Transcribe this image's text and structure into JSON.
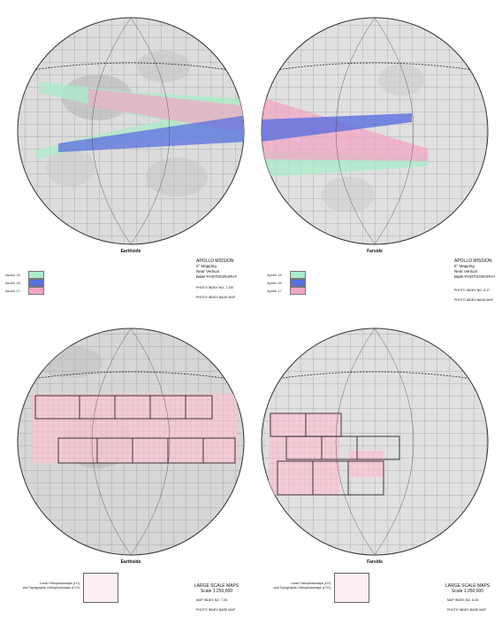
{
  "panels": [
    {
      "side": "Earthside",
      "legend": [
        {
          "label": "Apollo 15",
          "color": "#a8ecc8"
        },
        {
          "label": "Apollo 16",
          "color": "#5a6fe0"
        },
        {
          "label": "Apollo 17",
          "color": "#f3a6c4"
        }
      ],
      "title_lines": [
        "APOLLO MISSION",
        "5° Mapping",
        "Near Vertical",
        "B&W PHOTOGRAPHY"
      ],
      "photo_index_no": "PHOTO INDEX NO. 7.230",
      "photo_index_base": "PHOTO INDEX   BASE MAP"
    },
    {
      "side": "Farside",
      "legend": [
        {
          "label": "Apollo 15",
          "color": "#a8ecc8"
        },
        {
          "label": "Apollo 16",
          "color": "#5a6fe0"
        },
        {
          "label": "Apollo 17",
          "color": "#f3a6c4"
        }
      ],
      "title_lines": [
        "APOLLO MISSION",
        "5° Mapping",
        "Near Vertical",
        "B&W PHOTOGRAPHY"
      ],
      "photo_index_no": "PHOTO INDEX NO. 8.17",
      "photo_index_base": "PHOTO INDEX   BASE MAP"
    },
    {
      "side": "Earthside",
      "legend_text": [
        "Lunar Orthophotomaps (LO)",
        "and Topographic Orthophotomaps (LTO)"
      ],
      "title_lines": [
        "LARGE SCALE MAPS",
        "Scale 1:250,000"
      ],
      "map_index_no": "MAP INDEX NO. 7.26",
      "photo_index_base": "PHOTO INDEX   BASE MAP"
    },
    {
      "side": "Farside",
      "legend_text": [
        "Lunar Orthophotomaps (LO)",
        "and Topographic Orthophotomaps (LTO)"
      ],
      "title_lines": [
        "LARGE SCALE MAPS",
        "Scale 1:250,000"
      ],
      "map_index_no": "MAP INDEX NO. 8.26",
      "photo_index_base": "PHOTO INDEX   BASE MAP"
    }
  ],
  "colors": {
    "apollo15": "#a8ecc8",
    "apollo16": "#5a6fe0",
    "apollo17": "#f3a6c4",
    "grid": "#555555",
    "globe_fill": "#d9d9d9",
    "map_cell": "#f6c9d6"
  }
}
